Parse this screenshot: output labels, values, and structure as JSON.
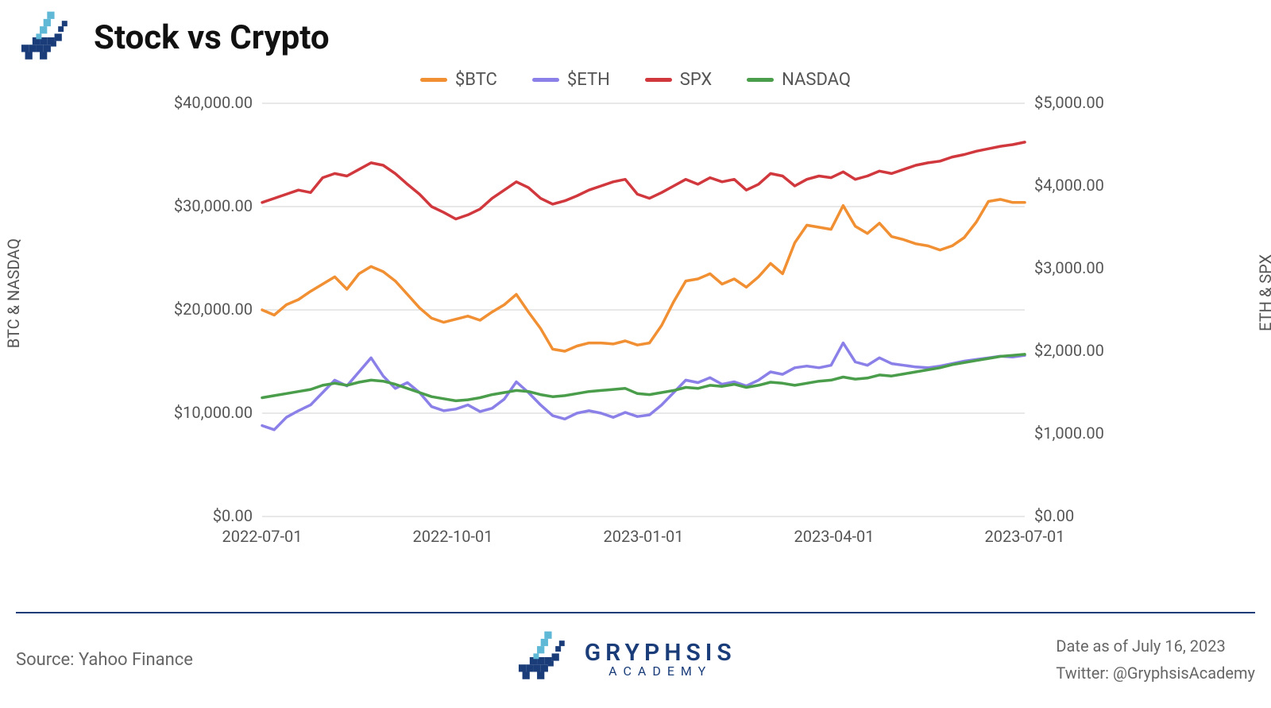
{
  "title": "Stock vs Crypto",
  "legend": {
    "items": [
      {
        "label": "$BTC",
        "color": "#f18f33"
      },
      {
        "label": "$ETH",
        "color": "#8a80e8"
      },
      {
        "label": "SPX",
        "color": "#d1383d"
      },
      {
        "label": "NASDAQ",
        "color": "#4a9d4a"
      }
    ]
  },
  "chart": {
    "type": "line",
    "background_color": "#ffffff",
    "grid_color": "#d0d0d0",
    "line_width": 3.5,
    "left_axis": {
      "label": "BTC & NASDAQ",
      "min": 0,
      "max": 40000,
      "step": 10000,
      "tick_labels": [
        "$0.00",
        "$10,000.00",
        "$20,000.00",
        "$30,000.00",
        "$40,000.00"
      ]
    },
    "right_axis": {
      "label": "ETH & SPX",
      "min": 0,
      "max": 5000,
      "step": 1000,
      "tick_labels": [
        "$0.00",
        "$1,000.00",
        "$2,000.00",
        "$3,000.00",
        "$4,000.00",
        "$5,000.00"
      ]
    },
    "x_axis": {
      "tick_labels": [
        "2022-07-01",
        "2022-10-01",
        "2023-01-01",
        "2023-04-01",
        "2023-07-01"
      ],
      "tick_positions": [
        0,
        0.25,
        0.5,
        0.75,
        1.0
      ]
    },
    "series": [
      {
        "name": "BTC",
        "axis": "left",
        "color": "#f18f33",
        "data": [
          20000,
          19500,
          20500,
          21000,
          21800,
          22500,
          23200,
          22000,
          23500,
          24200,
          23700,
          22800,
          21500,
          20200,
          19200,
          18800,
          19100,
          19400,
          19000,
          19800,
          20500,
          21500,
          19800,
          18200,
          16200,
          16000,
          16500,
          16800,
          16800,
          16700,
          17000,
          16600,
          16800,
          18500,
          20800,
          22800,
          23000,
          23500,
          22500,
          23000,
          22200,
          23200,
          24500,
          23500,
          26500,
          28200,
          28000,
          27800,
          30100,
          28100,
          27400,
          28400,
          27100,
          26800,
          26400,
          26200,
          25800,
          26200,
          27000,
          28500,
          30500,
          30700,
          30400,
          30400
        ]
      },
      {
        "name": "ETH",
        "axis": "right",
        "color": "#8a80e8",
        "data": [
          1100,
          1050,
          1200,
          1280,
          1350,
          1500,
          1650,
          1580,
          1750,
          1920,
          1700,
          1550,
          1620,
          1500,
          1330,
          1280,
          1300,
          1350,
          1270,
          1310,
          1420,
          1630,
          1500,
          1350,
          1220,
          1180,
          1250,
          1280,
          1250,
          1200,
          1260,
          1210,
          1230,
          1350,
          1500,
          1650,
          1620,
          1680,
          1600,
          1630,
          1580,
          1650,
          1750,
          1720,
          1800,
          1820,
          1800,
          1830,
          2100,
          1870,
          1830,
          1920,
          1850,
          1830,
          1810,
          1800,
          1820,
          1850,
          1880,
          1900,
          1920,
          1940,
          1930,
          1950
        ]
      },
      {
        "name": "SPX",
        "axis": "right",
        "color": "#d1383d",
        "data": [
          3800,
          3850,
          3900,
          3950,
          3920,
          4100,
          4150,
          4120,
          4200,
          4280,
          4250,
          4150,
          4020,
          3900,
          3750,
          3680,
          3600,
          3650,
          3720,
          3850,
          3950,
          4050,
          3980,
          3850,
          3780,
          3820,
          3880,
          3950,
          4000,
          4050,
          4080,
          3900,
          3850,
          3920,
          4000,
          4080,
          4020,
          4100,
          4050,
          4080,
          3950,
          4020,
          4150,
          4120,
          4000,
          4080,
          4120,
          4100,
          4170,
          4080,
          4120,
          4180,
          4150,
          4200,
          4250,
          4280,
          4300,
          4350,
          4380,
          4420,
          4450,
          4480,
          4500,
          4530
        ]
      },
      {
        "name": "NASDAQ",
        "axis": "left",
        "color": "#4a9d4a",
        "data": [
          11500,
          11700,
          11900,
          12100,
          12300,
          12700,
          12900,
          12700,
          13000,
          13200,
          13100,
          12800,
          12400,
          12000,
          11600,
          11400,
          11200,
          11300,
          11500,
          11800,
          12000,
          12200,
          12100,
          11800,
          11600,
          11700,
          11900,
          12100,
          12200,
          12300,
          12400,
          11900,
          11800,
          12000,
          12200,
          12500,
          12400,
          12700,
          12600,
          12800,
          12500,
          12700,
          13000,
          12900,
          12700,
          12900,
          13100,
          13200,
          13500,
          13300,
          13400,
          13700,
          13600,
          13800,
          14000,
          14200,
          14400,
          14700,
          14900,
          15100,
          15300,
          15500,
          15600,
          15700
        ]
      }
    ]
  },
  "footer": {
    "source": "Source: Yahoo Finance",
    "brand_main": "GRYPHSIS",
    "brand_sub": "ACADEMY",
    "date": "Date as of July 16, 2023",
    "twitter": "Twitter: @GryphsisAcademy"
  }
}
